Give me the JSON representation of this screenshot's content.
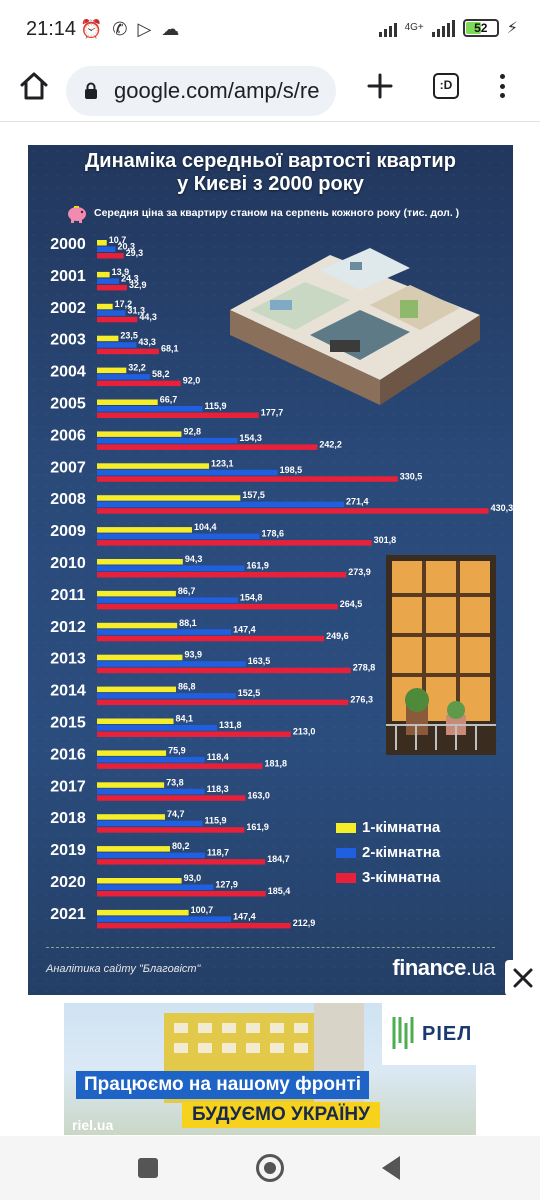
{
  "status_bar": {
    "time": "21:14",
    "network": "4G+",
    "battery": "52",
    "battery_level": 0.52
  },
  "browser": {
    "url": "google.com/amp/s/re",
    "tabs_label": ":D"
  },
  "infographic": {
    "title_line1": "Динаміка середньої вартості квартир",
    "title_line2": "у Києві з 2000 року",
    "subtitle": "Середня ціна за квартиру станом на серпень кожного року (тис. дол. )",
    "source": "Аналітика сайту \"Благовіст\"",
    "brand_main": "finance",
    "brand_suffix": ".ua"
  },
  "chart_data": {
    "type": "bar",
    "orientation": "horizontal",
    "title": "Динаміка середньої вартості квартир у Києві з 2000 року",
    "subtitle": "Середня ціна за квартиру станом на серпень кожного року (тис. дол. )",
    "categories": [
      "2000",
      "2001",
      "2002",
      "2003",
      "2004",
      "2005",
      "2006",
      "2007",
      "2008",
      "2009",
      "2010",
      "2011",
      "2012",
      "2013",
      "2014",
      "2015",
      "2016",
      "2017",
      "2018",
      "2019",
      "2020",
      "2021"
    ],
    "series": [
      {
        "name": "1-кімнатна",
        "color": "#f7ee2a",
        "values": [
          10.7,
          13.9,
          17.2,
          23.5,
          32.2,
          66.7,
          92.8,
          123.1,
          157.5,
          104.4,
          94.3,
          86.7,
          88.1,
          93.9,
          86.8,
          84.1,
          75.9,
          73.8,
          74.7,
          80.2,
          93.0,
          100.7
        ],
        "labels": [
          "10,7",
          "13,9",
          "17,2",
          "23,5",
          "32,2",
          "66,7",
          "92,8",
          "123,1",
          "157,5",
          "104,4",
          "94,3",
          "86,7",
          "88,1",
          "93,9",
          "86,8",
          "84,1",
          "75,9",
          "73,8",
          "74,7",
          "80,2",
          "93,0",
          "100,7"
        ]
      },
      {
        "name": "2-кімнатна",
        "color": "#2060e0",
        "values": [
          20.3,
          24.3,
          31.3,
          43.3,
          58.2,
          115.9,
          154.3,
          198.5,
          271.4,
          178.6,
          161.9,
          154.8,
          147.4,
          163.5,
          152.5,
          131.8,
          118.4,
          118.3,
          115.9,
          118.7,
          127.9,
          147.4
        ],
        "labels": [
          "20,3",
          "24,3",
          "31,3",
          "43,3",
          "58,2",
          "115,9",
          "154,3",
          "198,5",
          "271,4",
          "178,6",
          "161,9",
          "154,8",
          "147,4",
          "163,5",
          "152,5",
          "131,8",
          "118,4",
          "118,3",
          "115,9",
          "118,7",
          "127,9",
          "147,4"
        ]
      },
      {
        "name": "3-кімнатна",
        "color": "#e8203a",
        "values": [
          29.3,
          32.9,
          44.3,
          68.1,
          92.0,
          177.7,
          242.2,
          330.5,
          430.3,
          301.8,
          273.9,
          264.5,
          249.6,
          278.8,
          276.3,
          213.0,
          181.8,
          163.0,
          161.9,
          184.7,
          185.4,
          212.9
        ],
        "labels": [
          "29,3",
          "32,9",
          "44,3",
          "68,1",
          "92,0",
          "177,7",
          "242,2",
          "330,5",
          "430,3",
          "301,8",
          "273,9",
          "264,5",
          "249,6",
          "278,8",
          "276,3",
          "213,0",
          "181,8",
          "163,0",
          "161,9",
          "184,7",
          "185,4",
          "212,9"
        ]
      }
    ],
    "legend_position": "bottom-right",
    "grid": false
  },
  "ad": {
    "line1": "Працюємо на нашому фронті",
    "line2": "БУДУЄМО УКРАЇНУ",
    "url": "riel.ua",
    "logo": "РІЕЛ"
  }
}
